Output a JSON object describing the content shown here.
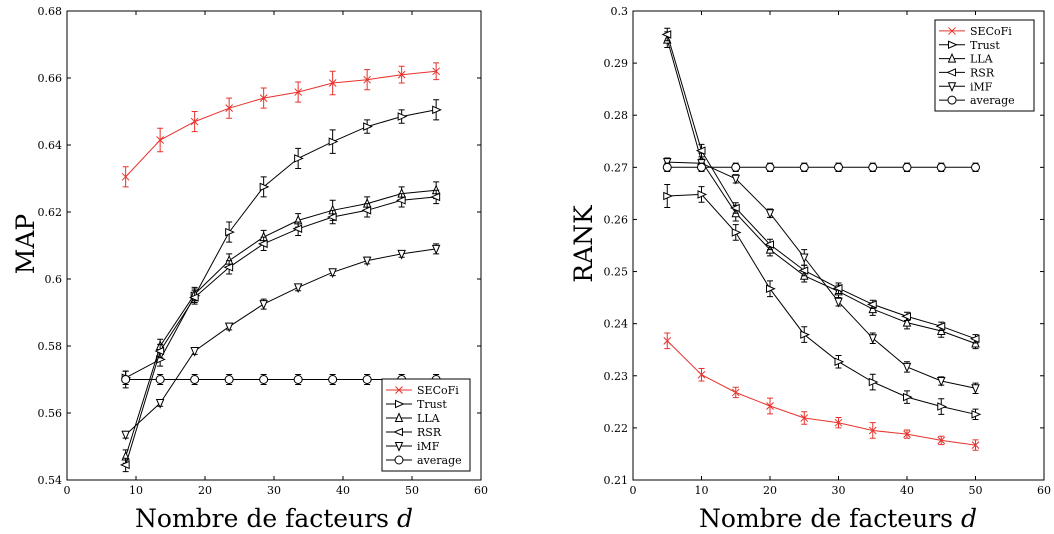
{
  "chart_data": [
    {
      "type": "line",
      "ylabel": "MAP",
      "xlabel_prefix": "Nombre de facteurs ",
      "xlabel_var": "d",
      "xlim": [
        0,
        60
      ],
      "ylim": [
        0.54,
        0.68
      ],
      "xticks": [
        0,
        10,
        20,
        30,
        40,
        50,
        60
      ],
      "yticks": [
        0.54,
        0.56,
        0.58,
        0.6,
        0.62,
        0.64,
        0.66,
        0.68
      ],
      "ytick_labels": [
        "0.54",
        "0.56",
        "0.58",
        "0.6",
        "0.62",
        "0.64",
        "0.66",
        "0.68"
      ],
      "legend_position": "bottom-right",
      "grid": false,
      "x": [
        8.5,
        13.5,
        18.5,
        23.5,
        28.5,
        33.5,
        38.5,
        43.5,
        48.5,
        53.5
      ],
      "series": [
        {
          "name": "SECoFi",
          "marker": "x",
          "color": "#e8322d",
          "values": [
            0.6305,
            0.6415,
            0.647,
            0.651,
            0.654,
            0.6558,
            0.6585,
            0.6595,
            0.661,
            0.662
          ],
          "errors": [
            0.003,
            0.0035,
            0.003,
            0.003,
            0.003,
            0.003,
            0.0035,
            0.003,
            0.0025,
            0.0025
          ]
        },
        {
          "name": "Trust",
          "marker": "tri-right",
          "color": "#000000",
          "values": [
            0.5705,
            0.576,
            0.595,
            0.614,
            0.6275,
            0.636,
            0.641,
            0.6455,
            0.6485,
            0.6505
          ],
          "errors": [
            0.002,
            0.002,
            0.002,
            0.003,
            0.003,
            0.003,
            0.0035,
            0.002,
            0.002,
            0.003
          ]
        },
        {
          "name": "LLA",
          "marker": "tri-up",
          "color": "#000000",
          "values": [
            0.547,
            0.58,
            0.5955,
            0.6055,
            0.6125,
            0.6175,
            0.6205,
            0.6225,
            0.6255,
            0.6265
          ],
          "errors": [
            0.002,
            0.002,
            0.002,
            0.002,
            0.002,
            0.002,
            0.003,
            0.002,
            0.002,
            0.0025
          ]
        },
        {
          "name": "RSR",
          "marker": "tri-left",
          "color": "#000000",
          "values": [
            0.5445,
            0.5785,
            0.5945,
            0.6035,
            0.6105,
            0.615,
            0.6185,
            0.6205,
            0.6235,
            0.6245
          ],
          "errors": [
            0.002,
            0.002,
            0.002,
            0.002,
            0.002,
            0.002,
            0.002,
            0.002,
            0.002,
            0.002
          ]
        },
        {
          "name": "iMF",
          "marker": "tri-down",
          "color": "#000000",
          "values": [
            0.5535,
            0.563,
            0.5785,
            0.5858,
            0.5925,
            0.5975,
            0.602,
            0.6055,
            0.6075,
            0.609
          ],
          "errors": [
            0.001,
            0.001,
            0.001,
            0.001,
            0.0015,
            0.001,
            0.001,
            0.001,
            0.001,
            0.0015
          ]
        },
        {
          "name": "average",
          "marker": "circle",
          "color": "#000000",
          "values": [
            0.57,
            0.57,
            0.57,
            0.57,
            0.57,
            0.57,
            0.57,
            0.57,
            0.57,
            0.57
          ],
          "errors": [
            0.0025,
            0.0015,
            0.0015,
            0.0015,
            0.0015,
            0.0015,
            0.0015,
            0.0015,
            0.0015,
            0.0015
          ]
        }
      ]
    },
    {
      "type": "line",
      "ylabel": "RANK",
      "xlabel_prefix": "Nombre de facteurs ",
      "xlabel_var": "d",
      "xlim": [
        0,
        60
      ],
      "ylim": [
        0.21,
        0.3
      ],
      "xticks": [
        0,
        10,
        20,
        30,
        40,
        50,
        60
      ],
      "yticks": [
        0.21,
        0.22,
        0.23,
        0.24,
        0.25,
        0.26,
        0.27,
        0.28,
        0.29,
        0.3
      ],
      "ytick_labels": [
        "0.21",
        "0.22",
        "0.23",
        "0.24",
        "0.25",
        "0.26",
        "0.27",
        "0.28",
        "0.29",
        "0.3"
      ],
      "legend_position": "top-right",
      "grid": false,
      "x": [
        5,
        10,
        15,
        20,
        25,
        30,
        35,
        40,
        45,
        50
      ],
      "series": [
        {
          "name": "SECoFi",
          "marker": "x",
          "color": "#e8322d",
          "values": [
            0.2367,
            0.2302,
            0.2268,
            0.2242,
            0.2219,
            0.221,
            0.2195,
            0.2188,
            0.2176,
            0.2167
          ],
          "errors": [
            0.0015,
            0.0012,
            0.001,
            0.0015,
            0.0012,
            0.001,
            0.0015,
            0.0008,
            0.0008,
            0.001
          ]
        },
        {
          "name": "Trust",
          "marker": "tri-right",
          "color": "#000000",
          "values": [
            0.2645,
            0.2648,
            0.2575,
            0.2467,
            0.2379,
            0.2327,
            0.2288,
            0.2259,
            0.2241,
            0.2226
          ],
          "errors": [
            0.0022,
            0.0015,
            0.0015,
            0.0015,
            0.0015,
            0.0012,
            0.0015,
            0.0012,
            0.0015,
            0.001
          ]
        },
        {
          "name": "LLA",
          "marker": "tri-up",
          "color": "#000000",
          "values": [
            0.2945,
            0.2712,
            0.2612,
            0.2542,
            0.2492,
            0.2462,
            0.2428,
            0.2402,
            0.2386,
            0.2362
          ],
          "errors": [
            0.0015,
            0.0015,
            0.0015,
            0.0012,
            0.0012,
            0.0012,
            0.0012,
            0.0012,
            0.0012,
            0.001
          ]
        },
        {
          "name": "RSR",
          "marker": "tri-left",
          "color": "#000000",
          "values": [
            0.2955,
            0.2732,
            0.2622,
            0.2552,
            0.2502,
            0.2468,
            0.2437,
            0.2414,
            0.2395,
            0.2371
          ],
          "errors": [
            0.0012,
            0.0012,
            0.001,
            0.001,
            0.001,
            0.001,
            0.0008,
            0.0008,
            0.0008,
            0.0008
          ]
        },
        {
          "name": "iMF",
          "marker": "tri-down",
          "color": "#000000",
          "values": [
            0.271,
            0.2708,
            0.2678,
            0.2612,
            0.2527,
            0.2442,
            0.2372,
            0.2317,
            0.229,
            0.2276
          ],
          "errors": [
            0.0008,
            0.0008,
            0.0008,
            0.0008,
            0.0015,
            0.0008,
            0.001,
            0.001,
            0.0008,
            0.001
          ]
        },
        {
          "name": "average",
          "marker": "circle",
          "color": "#000000",
          "values": [
            0.27,
            0.27,
            0.27,
            0.27,
            0.27,
            0.27,
            0.27,
            0.27,
            0.27,
            0.27
          ],
          "errors": [
            0.0008,
            0.0008,
            0.0008,
            0.0008,
            0.0008,
            0.0008,
            0.0008,
            0.0008,
            0.0008,
            0.0008
          ]
        }
      ]
    }
  ]
}
